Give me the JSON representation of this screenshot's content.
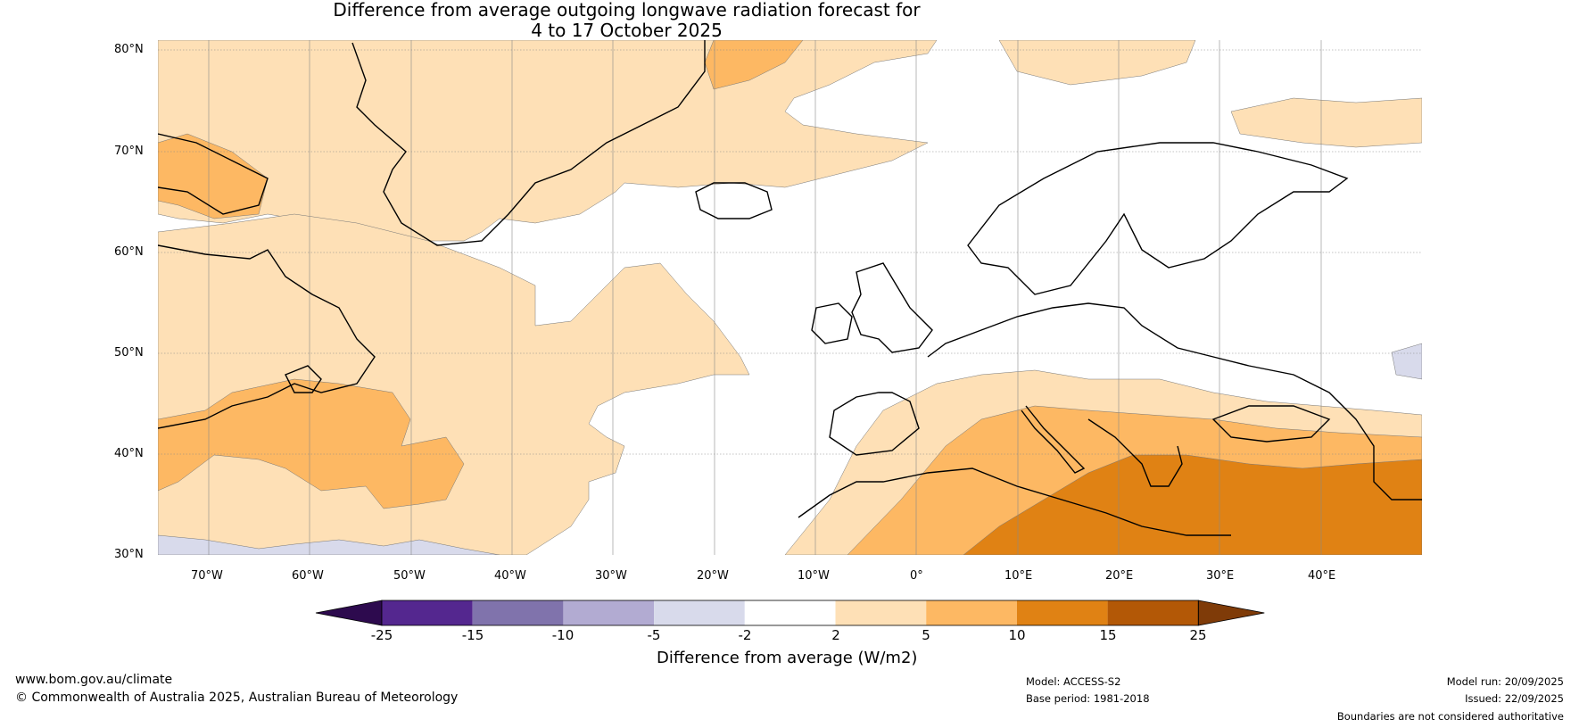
{
  "title": {
    "line1": "Difference from average outgoing longwave radiation forecast for",
    "line2": "4 to 17 October 2025"
  },
  "map": {
    "lat_labels": [
      "80°N",
      "70°N",
      "60°N",
      "50°N",
      "40°N",
      "30°N"
    ],
    "lon_labels": [
      "70°W",
      "60°W",
      "50°W",
      "40°W",
      "30°W",
      "20°W",
      "10°W",
      "0°",
      "10°E",
      "20°E",
      "30°E",
      "40°E"
    ],
    "lon_range": [
      -75,
      50
    ],
    "lat_range": [
      30,
      81
    ]
  },
  "colorbar": {
    "title": "Difference from average (W/m2)",
    "ticks": [
      "-25",
      "-15",
      "-10",
      "-5",
      "-2",
      "2",
      "5",
      "10",
      "15",
      "25"
    ],
    "colors": [
      "#2d0a4e",
      "#54278f",
      "#8073ac",
      "#b2abd2",
      "#d8daeb",
      "#ffffff",
      "#fee0b6",
      "#fdb863",
      "#e08214",
      "#b35806",
      "#7f3b08"
    ]
  },
  "footer": {
    "website": "www.bom.gov.au/climate",
    "copyright": "© Commonwealth of Australia 2025, Australian Bureau of Meteorology",
    "model": "Model: ACCESS-S2",
    "base_period": "Base period: 1981-2018",
    "model_run": "Model run: 20/09/2025",
    "issued": "Issued: 22/09/2025",
    "disclaimer": "Boundaries are not considered authoritative"
  }
}
